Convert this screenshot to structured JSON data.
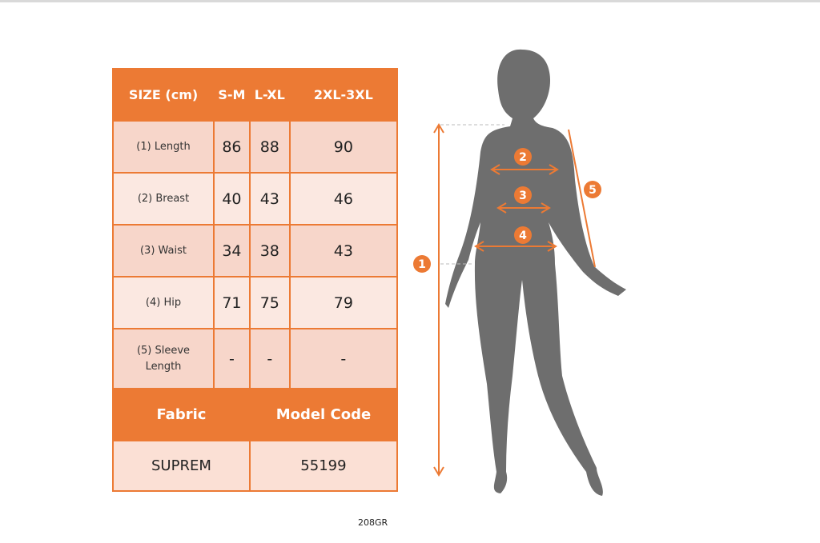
{
  "size_table": {
    "header": [
      "SIZE (cm)",
      "S-M",
      "L-XL",
      "2XL-3XL"
    ],
    "rows": [
      {
        "label": "(1) Length",
        "values": [
          "86",
          "88",
          "90"
        ]
      },
      {
        "label": "(2) Breast",
        "values": [
          "40",
          "43",
          "46"
        ]
      },
      {
        "label": "(3) Waist",
        "values": [
          "34",
          "38",
          "43"
        ]
      },
      {
        "label": "(4) Hip",
        "values": [
          "71",
          "75",
          "79"
        ]
      },
      {
        "label": "(5) Sleeve Length",
        "values": [
          "-",
          "-",
          "-"
        ]
      }
    ],
    "fabric_label": "Fabric",
    "model_code_label": "Model Code",
    "fabric": "SUPREM",
    "model_code": "55199"
  },
  "figure": {
    "markers": [
      "1",
      "2",
      "3",
      "4",
      "5"
    ],
    "accent_color": "#ec7a34",
    "silhouette_color": "#6e6e6e"
  },
  "caption": "208GR"
}
